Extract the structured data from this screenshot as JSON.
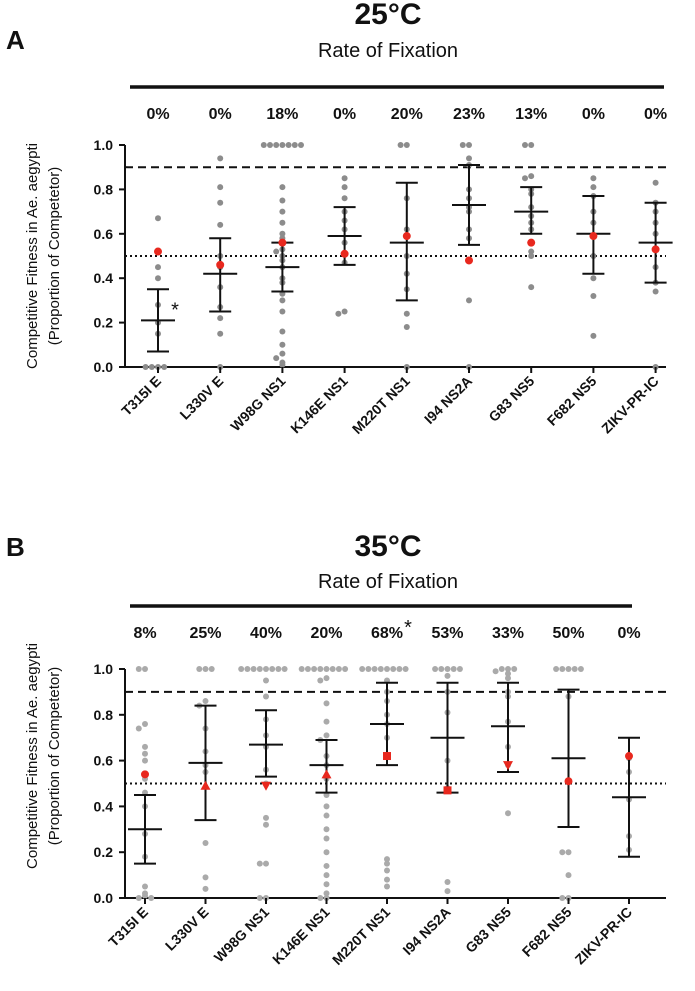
{
  "colors": {
    "point_a": "#8c8c8c",
    "point_b": "#aaaaaa",
    "red": "#e8281e",
    "ink": "#111111"
  },
  "chart_data": [
    {
      "type": "scatter",
      "panel_label": "A",
      "title": "25°C",
      "subtitle": "Rate of Fixation",
      "ylabel_line1": "Competitive Fitness in Ae. aegypti",
      "ylabel_line2": "(Proportion of Competetor)",
      "ylim": [
        0,
        1.0
      ],
      "yticks": [
        "0.0",
        "0.2",
        "0.4",
        "0.6",
        "0.8",
        "1.0"
      ],
      "reference_lines": {
        "dashed": 0.9,
        "dotted": 0.5
      },
      "red_marker": "circle",
      "categories": [
        "T315I E",
        "L330V E",
        "W98G NS1",
        "K146E NS1",
        "M220T NS1",
        "I94 NS2A",
        "G83 NS5",
        "F682 NS5",
        "ZIKV-PR-IC"
      ],
      "fixation_rates": [
        "0%",
        "0%",
        "18%",
        "0%",
        "20%",
        "23%",
        "13%",
        "0%",
        "0%"
      ],
      "significance": [
        {
          "category": 0,
          "label": "*"
        }
      ],
      "mean": [
        0.21,
        0.42,
        0.45,
        0.59,
        0.56,
        0.73,
        0.7,
        0.6,
        0.56
      ],
      "sd_low": [
        0.07,
        0.25,
        0.34,
        0.46,
        0.3,
        0.55,
        0.6,
        0.42,
        0.38
      ],
      "sd_high": [
        0.35,
        0.58,
        0.56,
        0.72,
        0.83,
        0.91,
        0.81,
        0.77,
        0.74
      ],
      "red_point": [
        0.52,
        0.46,
        0.56,
        0.51,
        0.59,
        0.48,
        0.56,
        0.59,
        0.53
      ],
      "points": [
        [
          0.67,
          0.52,
          0.45,
          0.4,
          0.28,
          0.2,
          0.15,
          0.0,
          0.0,
          0.0,
          0.0
        ],
        [
          0.94,
          0.81,
          0.74,
          0.64,
          0.5,
          0.45,
          0.36,
          0.27,
          0.22,
          0.15,
          0.0
        ],
        [
          1.0,
          1.0,
          1.0,
          1.0,
          1.0,
          1.0,
          1.0,
          0.81,
          0.75,
          0.7,
          0.65,
          0.6,
          0.58,
          0.56,
          0.53,
          0.52,
          0.5,
          0.48,
          0.45,
          0.4,
          0.38,
          0.33,
          0.3,
          0.25,
          0.16,
          0.1,
          0.06,
          0.04,
          0.02,
          0.01
        ],
        [
          0.85,
          0.81,
          0.76,
          0.7,
          0.66,
          0.62,
          0.56,
          0.51,
          0.47,
          0.25,
          0.24
        ],
        [
          1.0,
          1.0,
          0.76,
          0.62,
          0.5,
          0.42,
          0.35,
          0.24,
          0.18,
          0.0
        ],
        [
          1.0,
          1.0,
          0.94,
          0.91,
          0.8,
          0.76,
          0.72,
          0.7,
          0.62,
          0.58,
          0.48,
          0.3,
          0.0
        ],
        [
          1.0,
          1.0,
          0.86,
          0.85,
          0.8,
          0.78,
          0.72,
          0.68,
          0.65,
          0.62,
          0.56,
          0.52,
          0.5,
          0.36
        ],
        [
          0.85,
          0.81,
          0.77,
          0.7,
          0.65,
          0.59,
          0.5,
          0.4,
          0.32,
          0.14
        ],
        [
          0.83,
          0.74,
          0.7,
          0.65,
          0.6,
          0.53,
          0.45,
          0.38,
          0.34,
          0.0
        ]
      ]
    },
    {
      "type": "scatter",
      "panel_label": "B",
      "title": "35°C",
      "subtitle": "Rate of Fixation",
      "ylabel_line1": "Competitive Fitness in Ae. aegypti",
      "ylabel_line2": "(Proportion of Competetor)",
      "ylim": [
        0,
        1.0
      ],
      "yticks": [
        "0.0",
        "0.2",
        "0.4",
        "0.6",
        "0.8",
        "1.0"
      ],
      "reference_lines": {
        "dashed": 0.9,
        "dotted": 0.5
      },
      "categories": [
        "T315I E",
        "L330V E",
        "W98G NS1",
        "K146E NS1",
        "M220T NS1",
        "I94 NS2A",
        "G83 NS5",
        "F682 NS5",
        "ZIKV-PR-IC"
      ],
      "fixation_rates": [
        "8%",
        "25%",
        "40%",
        "20%",
        "68%",
        "53%",
        "33%",
        "50%",
        "0%"
      ],
      "significance": [
        {
          "category": 4,
          "label": "*"
        }
      ],
      "mean": [
        0.3,
        0.59,
        0.67,
        0.58,
        0.76,
        0.7,
        0.75,
        0.61,
        0.44
      ],
      "sd_low": [
        0.15,
        0.34,
        0.53,
        0.46,
        0.58,
        0.46,
        0.55,
        0.31,
        0.18
      ],
      "sd_high": [
        0.45,
        0.84,
        0.82,
        0.69,
        0.94,
        0.94,
        0.94,
        0.91,
        0.7
      ],
      "red_point": [
        0.54,
        0.49,
        0.49,
        0.54,
        0.62,
        0.47,
        0.58,
        0.51,
        0.62
      ],
      "red_shape": [
        "circle",
        "triangle-up",
        "triangle-down",
        "triangle-up",
        "square",
        "square",
        "triangle-down",
        "circle",
        "circle"
      ],
      "points": [
        [
          1.0,
          1.0,
          0.76,
          0.74,
          0.66,
          0.63,
          0.6,
          0.52,
          0.46,
          0.4,
          0.28,
          0.18,
          0.05,
          0.02,
          0.01,
          0.0,
          0.0
        ],
        [
          1.0,
          1.0,
          1.0,
          0.86,
          0.84,
          0.74,
          0.64,
          0.58,
          0.55,
          0.24,
          0.09,
          0.04
        ],
        [
          1.0,
          1.0,
          1.0,
          1.0,
          1.0,
          1.0,
          1.0,
          1.0,
          0.95,
          0.88,
          0.78,
          0.71,
          0.66,
          0.56,
          0.5,
          0.35,
          0.32,
          0.15,
          0.15,
          0.0,
          0.0
        ],
        [
          1.0,
          1.0,
          1.0,
          1.0,
          1.0,
          1.0,
          1.0,
          1.0,
          0.96,
          0.95,
          0.85,
          0.77,
          0.71,
          0.69,
          0.62,
          0.58,
          0.52,
          0.45,
          0.4,
          0.36,
          0.3,
          0.26,
          0.2,
          0.14,
          0.1,
          0.06,
          0.02,
          0.0,
          0.0
        ],
        [
          1.0,
          1.0,
          1.0,
          1.0,
          1.0,
          1.0,
          1.0,
          1.0,
          0.95,
          0.9,
          0.86,
          0.8,
          0.76,
          0.7,
          0.17,
          0.15,
          0.12,
          0.08,
          0.05
        ],
        [
          1.0,
          1.0,
          1.0,
          1.0,
          1.0,
          0.97,
          0.9,
          0.81,
          0.6,
          0.48,
          0.07,
          0.03
        ],
        [
          1.0,
          1.0,
          1.0,
          0.99,
          0.98,
          0.96,
          0.9,
          0.88,
          0.77,
          0.66,
          0.58,
          0.37
        ],
        [
          1.0,
          1.0,
          1.0,
          1.0,
          1.0,
          0.88,
          0.2,
          0.2,
          0.1,
          0.0,
          0.0
        ],
        [
          0.61,
          0.55,
          0.43,
          0.27,
          0.21
        ]
      ]
    }
  ]
}
